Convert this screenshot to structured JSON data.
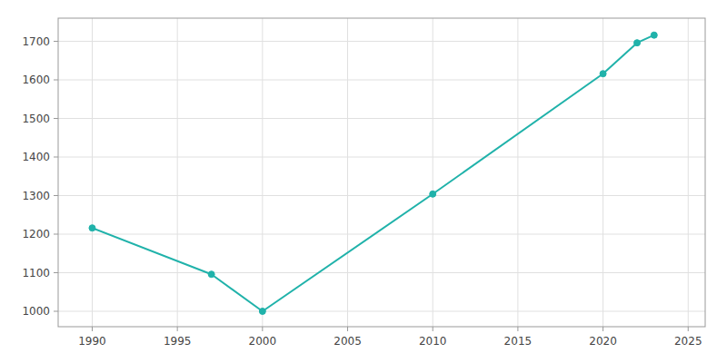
{
  "chart_data": {
    "type": "line",
    "x": [
      1990,
      1997,
      2000,
      2010,
      2020,
      2022,
      2023
    ],
    "values": [
      1216,
      1096,
      1000,
      1304,
      1616,
      1696,
      1716
    ],
    "color": "#20B2AA",
    "marker": "circle",
    "xlim": [
      1988,
      2026
    ],
    "ylim": [
      960,
      1760
    ],
    "xticks": [
      1990,
      1995,
      2000,
      2005,
      2010,
      2015,
      2020,
      2025
    ],
    "yticks": [
      1000,
      1100,
      1200,
      1300,
      1400,
      1500,
      1600,
      1700
    ],
    "grid": true
  }
}
